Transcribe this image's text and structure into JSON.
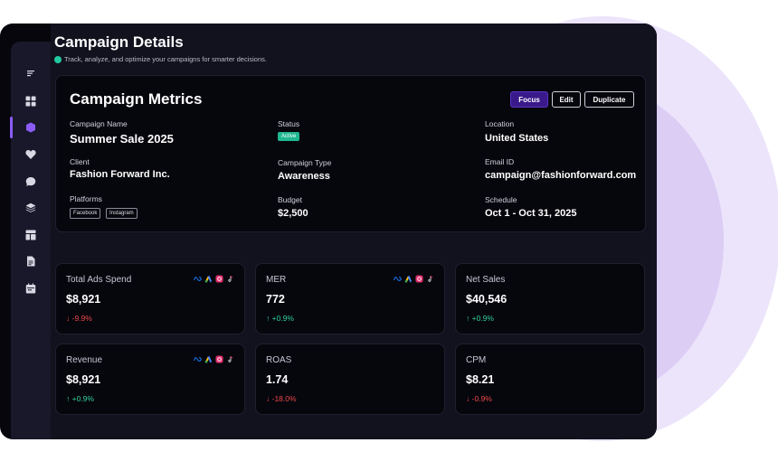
{
  "colors": {
    "accent": "#8b5cf6",
    "positive": "#2fd39b",
    "negative": "#ef4a4a",
    "active_badge": "#1fb890",
    "focus_button": "#3a1a8a"
  },
  "sidebar": {
    "items": [
      "menu-icon",
      "dashboard-icon",
      "campaign-icon",
      "heart-icon",
      "chat-icon",
      "layers-icon",
      "layout-icon",
      "document-icon",
      "calendar-icon"
    ]
  },
  "header": {
    "title": "Campaign Details",
    "subtitle": "Track, analyze, and optimize your campaigns for smarter decisions."
  },
  "metrics": {
    "heading": "Campaign Metrics",
    "buttons": {
      "focus": "Focus",
      "edit": "Edit",
      "duplicate": "Duplicate"
    },
    "campaign_name": {
      "label": "Campaign Name",
      "value": "Summer Sale 2025"
    },
    "client": {
      "label": "Client",
      "value": "Fashion Forward Inc."
    },
    "platforms": {
      "label": "Platforms",
      "items": [
        "Facebook",
        "Instagram"
      ]
    },
    "status": {
      "label": "Status",
      "value": "Active"
    },
    "campaign_type": {
      "label": "Campaign Type",
      "value": "Awareness"
    },
    "budget": {
      "label": "Budget",
      "value": "$2,500"
    },
    "location": {
      "label": "Location",
      "value": "United States"
    },
    "email": {
      "label": "Email ID",
      "value": "campaign@fashionforward.com"
    },
    "schedule": {
      "label": "Schedule",
      "value": "Oct 1 - Oct 31, 2025"
    }
  },
  "stats": [
    {
      "title": "Total Ads Spend",
      "value": "$8,921",
      "change": "↓ -9.9%"
    },
    {
      "title": "MER",
      "value": "772",
      "change": "↑ +0.9%"
    },
    {
      "title": "Net Sales",
      "value": "$40,546",
      "change": "↑ +0.9%"
    },
    {
      "title": "Revenue",
      "value": "$8,921",
      "change": "↑ +0.9%"
    },
    {
      "title": "ROAS",
      "value": "1.74",
      "change": "↓ -18.0%"
    },
    {
      "title": "CPM",
      "value": "$8.21",
      "change": "↓ -0.9%"
    }
  ]
}
